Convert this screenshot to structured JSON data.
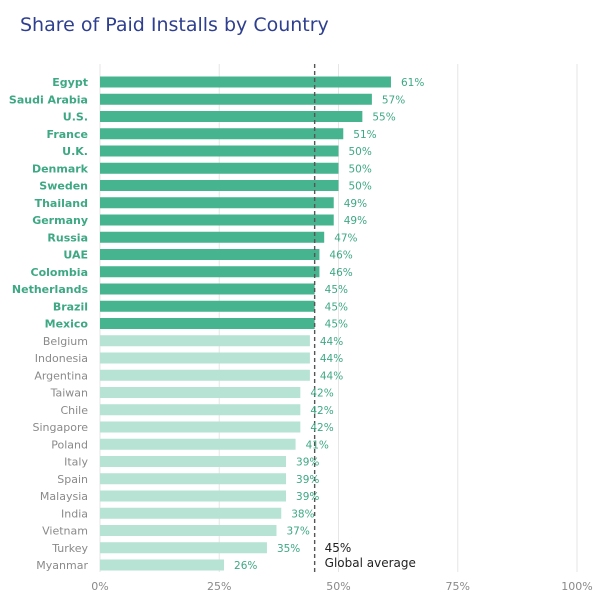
{
  "title": "Share of Paid Installs by Country",
  "colors": {
    "highlight": "#46b48e",
    "muted": "#b6e3d3",
    "highlight_label": "#3ea885",
    "muted_label": "#8a8a8a",
    "grid": "#e6e6e6",
    "reference_line": "#555555",
    "title": "#2e3f8f"
  },
  "chart_data": {
    "type": "bar",
    "orientation": "horizontal",
    "title": "Share of Paid Installs by Country",
    "xlabel": "",
    "ylabel": "",
    "xlim": [
      0,
      100
    ],
    "x_ticks": [
      "0%",
      "25%",
      "50%",
      "75%",
      "100%"
    ],
    "x_tick_values": [
      0,
      25,
      50,
      75,
      100
    ],
    "grid": true,
    "categories": [
      "Egypt",
      "Saudi Arabia",
      "U.S.",
      "France",
      "U.K.",
      "Denmark",
      "Sweden",
      "Thailand",
      "Germany",
      "Russia",
      "UAE",
      "Colombia",
      "Netherlands",
      "Brazil",
      "Mexico",
      "Belgium",
      "Indonesia",
      "Argentina",
      "Taiwan",
      "Chile",
      "Singapore",
      "Poland",
      "Italy",
      "Spain",
      "Malaysia",
      "India",
      "Vietnam",
      "Turkey",
      "Myanmar"
    ],
    "values": [
      61,
      57,
      55,
      51,
      50,
      50,
      50,
      49,
      49,
      47,
      46,
      46,
      45,
      45,
      45,
      44,
      44,
      44,
      42,
      42,
      42,
      41,
      39,
      39,
      39,
      38,
      37,
      35,
      26
    ],
    "value_labels": [
      "61%",
      "57%",
      "55%",
      "51%",
      "50%",
      "50%",
      "50%",
      "49%",
      "49%",
      "47%",
      "46%",
      "46%",
      "45%",
      "45%",
      "45%",
      "44%",
      "44%",
      "44%",
      "42%",
      "42%",
      "42%",
      "41%",
      "39%",
      "39%",
      "39%",
      "38%",
      "37%",
      "35%",
      "26%"
    ],
    "highlighted_count": 15,
    "reference_line": {
      "value": 45,
      "value_label": "45%",
      "label": "Global average",
      "style": "dashed"
    }
  }
}
